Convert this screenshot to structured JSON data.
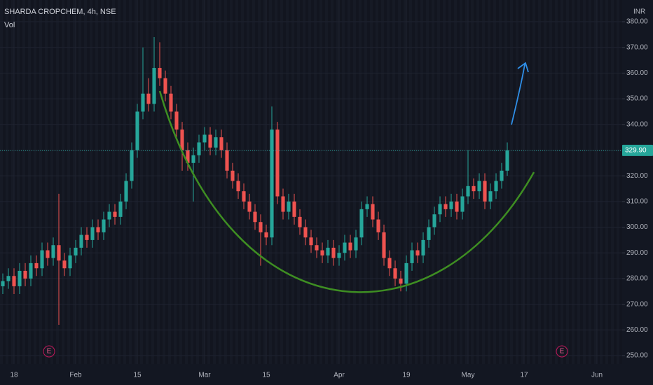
{
  "chart_data": {
    "type": "candlestick",
    "title": "SHARDA CROPCHEM, 4h, NSE",
    "subtitle": "Vol",
    "currency": "INR",
    "earnings_markers": [
      "E",
      "E"
    ],
    "up_color": "#26a69a",
    "down_color": "#ef5350",
    "grid": true,
    "categories": [
      null,
      null,
      "18",
      null,
      null,
      null,
      null,
      null,
      null,
      null,
      null,
      null,
      null,
      "Feb",
      null,
      null,
      null,
      null,
      null,
      null,
      null,
      null,
      null,
      null,
      "15",
      null,
      null,
      null,
      null,
      null,
      null,
      null,
      null,
      null,
      null,
      null,
      "Mar",
      null,
      null,
      null,
      null,
      null,
      null,
      null,
      null,
      null,
      null,
      "15",
      null,
      null,
      null,
      null,
      null,
      null,
      null,
      null,
      null,
      null,
      null,
      null,
      "Apr",
      null,
      null,
      null,
      null,
      null,
      null,
      null,
      null,
      null,
      null,
      null,
      "19",
      null,
      null,
      null,
      null,
      null,
      null,
      null,
      null,
      null,
      null,
      "May",
      null,
      null,
      null,
      null,
      null,
      null,
      null,
      null,
      null,
      "17",
      null,
      null,
      null,
      null,
      null,
      null,
      null,
      null,
      null,
      null,
      null,
      null,
      "Jun",
      null,
      null,
      null,
      null
    ],
    "open": [
      277,
      279,
      281,
      277,
      283,
      280,
      286,
      284,
      291,
      288,
      293,
      287,
      284,
      289,
      292,
      297,
      295,
      300,
      298,
      303,
      306,
      304,
      310,
      318,
      330,
      345,
      352,
      348,
      362,
      358,
      352,
      345,
      338,
      330,
      325,
      328,
      333,
      336,
      331,
      335,
      330,
      322,
      318,
      314,
      310,
      306,
      302,
      298,
      296,
      338,
      312,
      306,
      310,
      304,
      300,
      296,
      293,
      291,
      289,
      292,
      288,
      290,
      294,
      291,
      296,
      307,
      309,
      303,
      298,
      288,
      284,
      280,
      278,
      286,
      291,
      289,
      295,
      300,
      305,
      309,
      307,
      310,
      306,
      312,
      316,
      314,
      318,
      310,
      314,
      318,
      322,
      null,
      null,
      null,
      null,
      null,
      null,
      null,
      null,
      null,
      null,
      null,
      null,
      null,
      null,
      null,
      null,
      null,
      null,
      null,
      null
    ],
    "high": [
      282,
      284,
      284,
      286,
      286,
      289,
      289,
      294,
      294,
      296,
      313,
      290,
      292,
      295,
      300,
      300,
      303,
      303,
      306,
      309,
      309,
      313,
      321,
      333,
      348,
      370,
      358,
      374,
      372,
      361,
      355,
      348,
      341,
      333,
      331,
      336,
      339,
      339,
      338,
      338,
      333,
      325,
      321,
      317,
      313,
      309,
      305,
      301,
      347,
      341,
      315,
      313,
      313,
      307,
      303,
      299,
      296,
      294,
      295,
      295,
      293,
      297,
      297,
      299,
      310,
      312,
      312,
      306,
      301,
      291,
      287,
      283,
      289,
      294,
      294,
      298,
      303,
      308,
      312,
      312,
      313,
      313,
      315,
      330,
      319,
      321,
      321,
      317,
      321,
      325,
      333,
      null,
      null,
      null,
      null,
      null,
      null,
      null,
      null,
      null,
      null,
      null,
      null,
      null,
      null,
      null,
      null,
      null,
      null,
      null,
      null
    ],
    "low": [
      274,
      276,
      274,
      274,
      277,
      277,
      281,
      281,
      285,
      285,
      262,
      281,
      281,
      286,
      289,
      292,
      292,
      295,
      295,
      300,
      301,
      301,
      307,
      315,
      327,
      342,
      345,
      345,
      355,
      349,
      342,
      335,
      322,
      322,
      310,
      325,
      330,
      328,
      328,
      327,
      319,
      315,
      311,
      307,
      303,
      299,
      285,
      293,
      293,
      309,
      303,
      303,
      301,
      297,
      293,
      290,
      288,
      286,
      286,
      285,
      285,
      287,
      288,
      288,
      293,
      304,
      300,
      295,
      285,
      281,
      277,
      275,
      275,
      283,
      286,
      286,
      292,
      297,
      302,
      304,
      304,
      303,
      303,
      309,
      311,
      311,
      307,
      307,
      311,
      315,
      320,
      null,
      null,
      null,
      null,
      null,
      null,
      null,
      null,
      null,
      null,
      null,
      null,
      null,
      null,
      null,
      null,
      null,
      null,
      null,
      null
    ],
    "close": [
      279,
      281,
      277,
      283,
      280,
      286,
      284,
      291,
      288,
      293,
      287,
      284,
      289,
      292,
      297,
      295,
      300,
      298,
      303,
      306,
      304,
      310,
      318,
      330,
      345,
      352,
      348,
      362,
      358,
      352,
      345,
      338,
      330,
      325,
      328,
      333,
      336,
      331,
      335,
      330,
      322,
      318,
      314,
      310,
      306,
      302,
      298,
      296,
      338,
      312,
      306,
      310,
      304,
      300,
      296,
      293,
      291,
      289,
      292,
      288,
      290,
      294,
      291,
      296,
      307,
      309,
      303,
      298,
      288,
      284,
      280,
      278,
      286,
      291,
      289,
      295,
      300,
      305,
      309,
      307,
      310,
      306,
      312,
      316,
      314,
      318,
      310,
      314,
      318,
      322,
      329.9,
      null,
      null,
      null,
      null,
      null,
      null,
      null,
      null,
      null,
      null,
      null,
      null,
      null,
      null,
      null,
      null,
      null,
      null,
      null,
      null
    ],
    "last_price": {
      "value": 329.9,
      "label": "329.90"
    },
    "ylim": [
      246.73,
      388.45
    ],
    "yticks": [
      {
        "value": 250,
        "label": "250.00"
      },
      {
        "value": 260,
        "label": "260.00"
      },
      {
        "value": 270,
        "label": "270.00"
      },
      {
        "value": 280,
        "label": "280.00"
      },
      {
        "value": 290,
        "label": "290.00"
      },
      {
        "value": 300,
        "label": "300.00"
      },
      {
        "value": 310,
        "label": "310.00"
      },
      {
        "value": 320,
        "label": "320.00"
      },
      {
        "value": 330,
        "label": "330.00"
      },
      {
        "value": 340,
        "label": "340.00"
      },
      {
        "value": 350,
        "label": "350.00"
      },
      {
        "value": 360,
        "label": "360.00"
      },
      {
        "value": 370,
        "label": "370.00"
      },
      {
        "value": 380,
        "label": "380.00"
      }
    ]
  }
}
